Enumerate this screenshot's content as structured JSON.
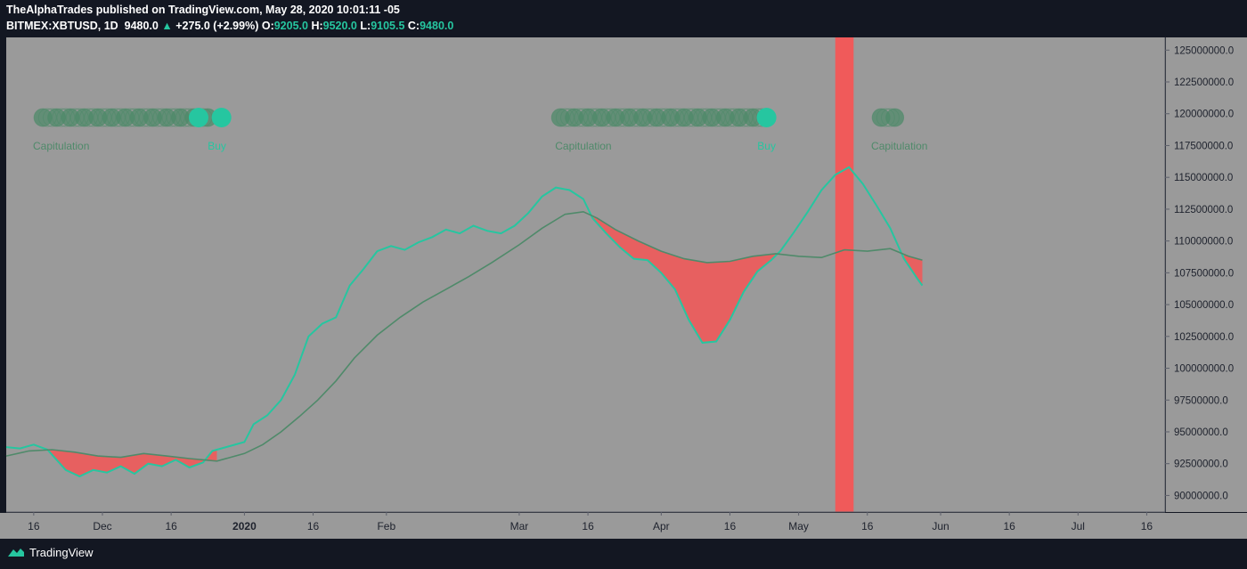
{
  "header": {
    "author": "TheAlphaTrades",
    "published_text": "published on TradingView.com, May 28, 2020 10:01:11 -05",
    "symbol": "BITMEX:XBTUSD, 1D",
    "last": "9480.0",
    "change": "+275.0 (+2.99%)",
    "o_label": "O:",
    "o_value": "9205.0",
    "h_label": "H:",
    "h_value": "9520.0",
    "l_label": "L:",
    "l_value": "9105.5",
    "c_label": "C:",
    "c_value": "9480.0",
    "up_icon": "triangle-up-icon"
  },
  "footer": {
    "brand": "TradingView",
    "brand_icon": "tradingview-logo-icon"
  },
  "colors": {
    "background": "#131722",
    "plot_bg": "#9a9a9a",
    "fast_line": "#26c6a0",
    "slow_line": "#4f8a6a",
    "bear_fill": "#f05a5a",
    "signal_dots": "#26c6a0",
    "faded_dots": "#4f8a6a"
  },
  "chart_data": {
    "type": "line",
    "x_axis_type": "date",
    "xlim": [
      "2019-11-10",
      "2020-07-20"
    ],
    "ylim": [
      88700000,
      126000000
    ],
    "grid": false,
    "x_ticks": [
      {
        "date": "2019-11-16",
        "label": "16"
      },
      {
        "date": "2019-12-01",
        "label": "Dec"
      },
      {
        "date": "2019-12-16",
        "label": "16"
      },
      {
        "date": "2020-01-01",
        "label": "2020"
      },
      {
        "date": "2020-01-16",
        "label": "16"
      },
      {
        "date": "2020-02-01",
        "label": "Feb"
      },
      {
        "date": "2020-03-01",
        "label": "Mar"
      },
      {
        "date": "2020-03-16",
        "label": "16"
      },
      {
        "date": "2020-04-01",
        "label": "Apr"
      },
      {
        "date": "2020-04-16",
        "label": "16"
      },
      {
        "date": "2020-05-01",
        "label": "May"
      },
      {
        "date": "2020-05-16",
        "label": "16"
      },
      {
        "date": "2020-06-01",
        "label": "Jun"
      },
      {
        "date": "2020-06-16",
        "label": "16"
      },
      {
        "date": "2020-07-01",
        "label": "Jul"
      },
      {
        "date": "2020-07-16",
        "label": "16"
      }
    ],
    "y_ticks": [
      {
        "value": 90000000,
        "label": "90000000.0"
      },
      {
        "value": 92500000,
        "label": "92500000.0"
      },
      {
        "value": 95000000,
        "label": "95000000.0"
      },
      {
        "value": 97500000,
        "label": "97500000.0"
      },
      {
        "value": 100000000,
        "label": "100000000.0"
      },
      {
        "value": 102500000,
        "label": "102500000.0"
      },
      {
        "value": 105000000,
        "label": "105000000.0"
      },
      {
        "value": 107500000,
        "label": "107500000.0"
      },
      {
        "value": 110000000,
        "label": "110000000.0"
      },
      {
        "value": 112500000,
        "label": "112500000.0"
      },
      {
        "value": 115000000,
        "label": "115000000.0"
      },
      {
        "value": 117500000,
        "label": "117500000.0"
      },
      {
        "value": 120000000,
        "label": "120000000.0"
      },
      {
        "value": 122500000,
        "label": "122500000.0"
      },
      {
        "value": 125000000,
        "label": "125000000.0"
      }
    ],
    "series": [
      {
        "color": "#26c6a0",
        "points": [
          [
            "2019-11-10",
            93800000
          ],
          [
            "2019-11-13",
            93700000
          ],
          [
            "2019-11-16",
            94000000
          ],
          [
            "2019-11-19",
            93600000
          ],
          [
            "2019-11-21",
            92800000
          ],
          [
            "2019-11-23",
            92000000
          ],
          [
            "2019-11-26",
            91500000
          ],
          [
            "2019-11-29",
            92000000
          ],
          [
            "2019-12-02",
            91800000
          ],
          [
            "2019-12-05",
            92300000
          ],
          [
            "2019-12-08",
            91700000
          ],
          [
            "2019-12-11",
            92500000
          ],
          [
            "2019-12-14",
            92300000
          ],
          [
            "2019-12-17",
            92800000
          ],
          [
            "2019-12-20",
            92200000
          ],
          [
            "2019-12-23",
            92600000
          ],
          [
            "2019-12-25",
            93500000
          ],
          [
            "2019-12-28",
            93800000
          ],
          [
            "2020-01-01",
            94200000
          ],
          [
            "2020-01-03",
            95600000
          ],
          [
            "2020-01-06",
            96300000
          ],
          [
            "2020-01-09",
            97500000
          ],
          [
            "2020-01-12",
            99500000
          ],
          [
            "2020-01-15",
            102500000
          ],
          [
            "2020-01-18",
            103500000
          ],
          [
            "2020-01-21",
            104000000
          ],
          [
            "2020-01-24",
            106500000
          ],
          [
            "2020-01-27",
            107800000
          ],
          [
            "2020-01-30",
            109200000
          ],
          [
            "2020-02-02",
            109600000
          ],
          [
            "2020-02-05",
            109300000
          ],
          [
            "2020-02-08",
            109900000
          ],
          [
            "2020-02-11",
            110300000
          ],
          [
            "2020-02-14",
            110900000
          ],
          [
            "2020-02-17",
            110600000
          ],
          [
            "2020-02-20",
            111200000
          ],
          [
            "2020-02-23",
            110800000
          ],
          [
            "2020-02-26",
            110600000
          ],
          [
            "2020-02-29",
            111200000
          ],
          [
            "2020-03-03",
            112200000
          ],
          [
            "2020-03-06",
            113500000
          ],
          [
            "2020-03-09",
            114200000
          ],
          [
            "2020-03-12",
            114000000
          ],
          [
            "2020-03-15",
            113300000
          ],
          [
            "2020-03-17",
            111800000
          ],
          [
            "2020-03-20",
            110600000
          ],
          [
            "2020-03-23",
            109500000
          ],
          [
            "2020-03-26",
            108600000
          ],
          [
            "2020-03-29",
            108500000
          ],
          [
            "2020-04-01",
            107500000
          ],
          [
            "2020-04-04",
            106200000
          ],
          [
            "2020-04-07",
            103800000
          ],
          [
            "2020-04-10",
            102000000
          ],
          [
            "2020-04-13",
            102100000
          ],
          [
            "2020-04-16",
            103800000
          ],
          [
            "2020-04-19",
            106000000
          ],
          [
            "2020-04-22",
            107600000
          ],
          [
            "2020-04-25",
            108500000
          ],
          [
            "2020-04-27",
            109200000
          ],
          [
            "2020-04-30",
            110700000
          ],
          [
            "2020-05-03",
            112300000
          ],
          [
            "2020-05-06",
            114000000
          ],
          [
            "2020-05-09",
            115200000
          ],
          [
            "2020-05-12",
            115800000
          ],
          [
            "2020-05-15",
            114500000
          ],
          [
            "2020-05-18",
            112800000
          ],
          [
            "2020-05-21",
            111000000
          ],
          [
            "2020-05-24",
            108600000
          ],
          [
            "2020-05-27",
            107000000
          ],
          [
            "2020-05-28",
            106500000
          ]
        ]
      },
      {
        "color": "#4f8a6a",
        "points": [
          [
            "2019-11-10",
            93100000
          ],
          [
            "2019-11-15",
            93500000
          ],
          [
            "2019-11-20",
            93600000
          ],
          [
            "2019-11-25",
            93400000
          ],
          [
            "2019-11-30",
            93100000
          ],
          [
            "2019-12-05",
            93000000
          ],
          [
            "2019-12-10",
            93300000
          ],
          [
            "2019-12-15",
            93100000
          ],
          [
            "2019-12-20",
            92900000
          ],
          [
            "2019-12-26",
            92700000
          ],
          [
            "2020-01-01",
            93300000
          ],
          [
            "2020-01-05",
            94000000
          ],
          [
            "2020-01-09",
            95000000
          ],
          [
            "2020-01-13",
            96200000
          ],
          [
            "2020-01-17",
            97500000
          ],
          [
            "2020-01-21",
            99000000
          ],
          [
            "2020-01-25",
            100800000
          ],
          [
            "2020-01-30",
            102600000
          ],
          [
            "2020-02-04",
            104000000
          ],
          [
            "2020-02-09",
            105200000
          ],
          [
            "2020-02-14",
            106200000
          ],
          [
            "2020-02-19",
            107200000
          ],
          [
            "2020-02-24",
            108300000
          ],
          [
            "2020-03-01",
            109700000
          ],
          [
            "2020-03-06",
            111000000
          ],
          [
            "2020-03-11",
            112100000
          ],
          [
            "2020-03-15",
            112300000
          ],
          [
            "2020-03-18",
            111800000
          ],
          [
            "2020-03-22",
            110900000
          ],
          [
            "2020-03-27",
            110000000
          ],
          [
            "2020-04-01",
            109200000
          ],
          [
            "2020-04-06",
            108600000
          ],
          [
            "2020-04-11",
            108300000
          ],
          [
            "2020-04-16",
            108400000
          ],
          [
            "2020-04-21",
            108800000
          ],
          [
            "2020-04-26",
            109000000
          ],
          [
            "2020-05-01",
            108800000
          ],
          [
            "2020-05-06",
            108700000
          ],
          [
            "2020-05-11",
            109300000
          ],
          [
            "2020-05-16",
            109200000
          ],
          [
            "2020-05-21",
            109400000
          ],
          [
            "2020-05-25",
            108800000
          ],
          [
            "2020-05-28",
            108500000
          ]
        ]
      }
    ],
    "bear_fill_between": [
      [
        "2019-11-19",
        "2019-12-26"
      ],
      [
        "2020-03-17",
        "2020-04-27"
      ],
      [
        "2020-05-24",
        "2020-05-28"
      ]
    ],
    "highlight_band": {
      "from": "2020-05-09",
      "to": "2020-05-13",
      "color": "#f05a5a"
    },
    "signal_rows": [
      {
        "row": 1,
        "from": "2019-11-18",
        "to": "2019-12-24",
        "bright": [
          "2019-12-22",
          "2019-12-27"
        ]
      },
      {
        "row": 1,
        "from": "2020-03-10",
        "to": "2020-04-24",
        "bright": [
          "2020-04-24"
        ]
      },
      {
        "row": 1,
        "from": "2020-05-19",
        "to": "2020-05-22",
        "bright": []
      }
    ],
    "annotations": [
      {
        "text": "Capitulation",
        "date": "2019-11-22",
        "color": "#4f8a6a"
      },
      {
        "text": "Buy",
        "date": "2019-12-26",
        "color": "#26c6a0"
      },
      {
        "text": "Capitulation",
        "date": "2020-03-15",
        "color": "#4f8a6a"
      },
      {
        "text": "Buy",
        "date": "2020-04-24",
        "color": "#26c6a0"
      },
      {
        "text": "Capitulation",
        "date": "2020-05-23",
        "color": "#4f8a6a"
      }
    ]
  }
}
